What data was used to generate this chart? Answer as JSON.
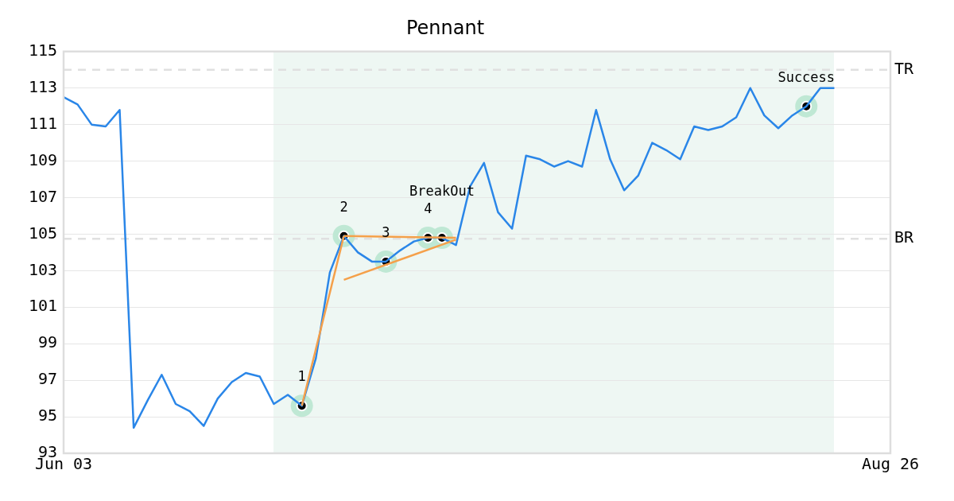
{
  "chart_data": {
    "type": "line",
    "title": "Pennant",
    "categories": [
      "Jun 03",
      null,
      null,
      null,
      null,
      null,
      null,
      null,
      null,
      null,
      null,
      null,
      null,
      null,
      null,
      null,
      null,
      null,
      null,
      null,
      null,
      null,
      null,
      null,
      null,
      null,
      null,
      null,
      null,
      null,
      null,
      null,
      null,
      null,
      null,
      null,
      null,
      null,
      null,
      null,
      null,
      null,
      null,
      null,
      null,
      null,
      null,
      null,
      null,
      null,
      null,
      null,
      null,
      null,
      null,
      null,
      null,
      null,
      null,
      "Aug 26"
    ],
    "ylim": [
      93,
      115
    ],
    "yticks": [
      93,
      95,
      97,
      99,
      101,
      103,
      105,
      107,
      109,
      111,
      113,
      115
    ],
    "grid": "y",
    "legend": false,
    "series": [
      {
        "color": "#2a86e8",
        "values": [
          112.5,
          112.1,
          111.0,
          110.9,
          111.8,
          94.4,
          95.9,
          97.3,
          95.7,
          95.3,
          94.5,
          96.0,
          96.9,
          97.4,
          97.2,
          95.7,
          96.2,
          95.6,
          98.2,
          102.9,
          104.9,
          104.0,
          103.5,
          103.5,
          104.1,
          104.6,
          104.8,
          104.8,
          104.4,
          107.6,
          108.9,
          106.2,
          105.3,
          109.3,
          109.1,
          108.7,
          109.0,
          108.7,
          111.8,
          109.1,
          107.4,
          108.2,
          110.0,
          109.6,
          109.1,
          110.9,
          110.7,
          110.9,
          111.4,
          113.0,
          111.5,
          110.8,
          111.5,
          112.0,
          113.0,
          113.0,
          null,
          null,
          null,
          null
        ]
      },
      {
        "color": "#f5a04a",
        "values": [
          null,
          null,
          null,
          null,
          null,
          null,
          null,
          null,
          null,
          null,
          null,
          null,
          null,
          null,
          null,
          null,
          null,
          95.6,
          null,
          null,
          104.9,
          null,
          null,
          null,
          null,
          null,
          null,
          null,
          null,
          null,
          null,
          null,
          null,
          null,
          null,
          null,
          null,
          null,
          null,
          null,
          null,
          null,
          null,
          null,
          null,
          null,
          null,
          null,
          null,
          null,
          null,
          null,
          null,
          null,
          null,
          null,
          null,
          null,
          null,
          null
        ]
      },
      {
        "color": "#f5a04a",
        "values": [
          null,
          null,
          null,
          null,
          null,
          null,
          null,
          null,
          null,
          null,
          null,
          null,
          null,
          null,
          null,
          null,
          null,
          null,
          null,
          null,
          104.9,
          null,
          null,
          null,
          null,
          null,
          null,
          null,
          104.8,
          null,
          null,
          null,
          null,
          null,
          null,
          null,
          null,
          null,
          null,
          null,
          null,
          null,
          null,
          null,
          null,
          null,
          null,
          null,
          null,
          null,
          null,
          null,
          null,
          null,
          null,
          null,
          null,
          null,
          null,
          null
        ]
      },
      {
        "color": "#f5a04a",
        "values": [
          null,
          null,
          null,
          null,
          null,
          null,
          null,
          null,
          null,
          null,
          null,
          null,
          null,
          null,
          null,
          null,
          null,
          null,
          null,
          null,
          102.5,
          null,
          null,
          null,
          null,
          null,
          null,
          null,
          104.7,
          null,
          null,
          null,
          null,
          null,
          null,
          null,
          null,
          null,
          null,
          null,
          null,
          null,
          null,
          null,
          null,
          null,
          null,
          null,
          null,
          null,
          null,
          null,
          null,
          null,
          null,
          null,
          null,
          null,
          null,
          null
        ]
      },
      {
        "type": "scatter",
        "color": "#000000",
        "marker": "circle",
        "values": [
          null,
          null,
          null,
          null,
          null,
          null,
          null,
          null,
          null,
          null,
          null,
          null,
          null,
          null,
          null,
          null,
          null,
          95.6,
          null,
          null,
          104.9,
          null,
          null,
          103.5,
          null,
          null,
          104.8,
          104.8,
          null,
          null,
          null,
          null,
          null,
          null,
          null,
          null,
          null,
          null,
          null,
          null,
          null,
          null,
          null,
          null,
          null,
          null,
          null,
          null,
          null,
          null,
          null,
          null,
          null,
          112.0,
          null,
          null,
          null,
          null,
          null,
          null
        ]
      }
    ],
    "annotations": [
      "1",
      "2",
      "3",
      "4",
      "BreakOut",
      "Success"
    ],
    "ref_lines": [
      {
        "axis": "y",
        "value": 114,
        "label": "TR",
        "color": "#e0e0e0",
        "line_style": "dashed"
      },
      {
        "axis": "y",
        "value": 104.75,
        "label": "BR",
        "color": "#e0e0e0",
        "line_style": "dashed"
      }
    ]
  }
}
